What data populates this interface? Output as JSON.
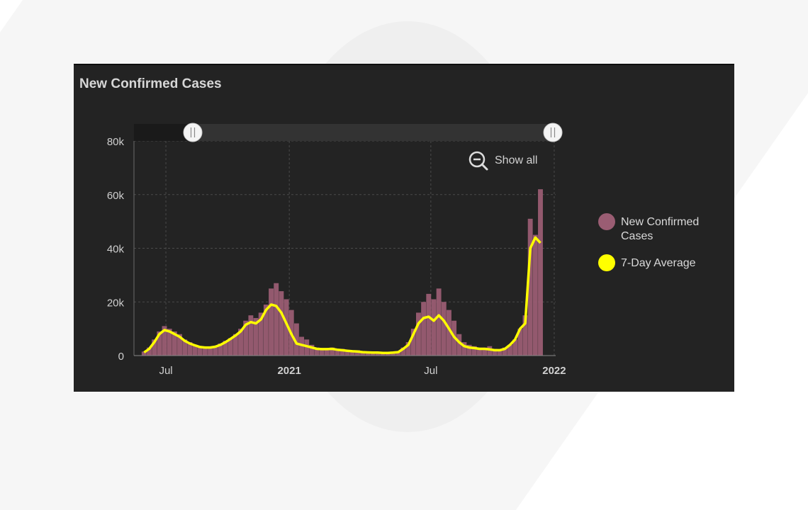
{
  "title": "New Confirmed Cases",
  "show_all_label": "Show all",
  "legend": [
    {
      "label": "New Confirmed Cases",
      "color": "#9a5d73"
    },
    {
      "label": "7-Day Average",
      "color": "#ffff00"
    }
  ],
  "chart_data": {
    "type": "bar",
    "title": "New Confirmed Cases",
    "xlabel": "",
    "ylabel": "",
    "ylim": [
      0,
      80000
    ],
    "y_ticks": [
      "0",
      "20k",
      "40k",
      "60k",
      "80k"
    ],
    "x_ticks": [
      "Jul",
      "2021",
      "Jul",
      "2022"
    ],
    "grid": true,
    "legend_position": "right",
    "series": [
      {
        "name": "New Confirmed Cases",
        "type": "bar",
        "color": "#9a5d73",
        "note": "daily values, approx",
        "x": [
          "2020-06-15",
          "2020-06-22",
          "2020-06-29",
          "2020-07-06",
          "2020-07-13",
          "2020-07-20",
          "2020-07-27",
          "2020-08-03",
          "2020-08-10",
          "2020-08-17",
          "2020-08-24",
          "2020-08-31",
          "2020-09-07",
          "2020-09-14",
          "2020-09-21",
          "2020-09-28",
          "2020-10-05",
          "2020-10-12",
          "2020-10-19",
          "2020-10-26",
          "2020-11-02",
          "2020-11-09",
          "2020-11-16",
          "2020-11-23",
          "2020-11-30",
          "2020-12-07",
          "2020-12-14",
          "2020-12-21",
          "2020-12-28",
          "2021-01-04",
          "2021-01-11",
          "2021-01-18",
          "2021-01-25",
          "2021-02-01",
          "2021-02-08",
          "2021-02-15",
          "2021-02-22",
          "2021-03-01",
          "2021-03-08",
          "2021-03-15",
          "2021-03-22",
          "2021-03-29",
          "2021-04-05",
          "2021-04-12",
          "2021-04-19",
          "2021-04-26",
          "2021-05-03",
          "2021-05-10",
          "2021-05-17",
          "2021-05-24",
          "2021-05-31",
          "2021-06-07",
          "2021-06-14",
          "2021-06-21",
          "2021-06-28",
          "2021-07-05",
          "2021-07-12",
          "2021-07-19",
          "2021-07-26",
          "2021-08-02",
          "2021-08-09",
          "2021-08-16",
          "2021-08-23",
          "2021-08-30",
          "2021-09-06",
          "2021-09-13",
          "2021-09-20",
          "2021-09-27",
          "2021-10-04",
          "2021-10-11",
          "2021-10-18",
          "2021-10-25",
          "2021-11-01",
          "2021-11-08",
          "2021-11-15",
          "2021-11-22",
          "2021-11-29",
          "2021-12-06",
          "2021-12-13",
          "2021-12-20",
          "2021-12-27",
          "2022-01-03"
        ],
        "values": [
          1500,
          3000,
          6000,
          9000,
          11000,
          10000,
          9000,
          8000,
          6000,
          5000,
          4000,
          3500,
          3000,
          3000,
          3500,
          4500,
          5500,
          6500,
          8000,
          10000,
          13000,
          15000,
          14000,
          16000,
          19000,
          25000,
          27000,
          24000,
          21000,
          17000,
          12000,
          7000,
          6000,
          4000,
          3000,
          2500,
          2500,
          3000,
          2500,
          2500,
          2000,
          2000,
          2000,
          1500,
          1500,
          1500,
          1200,
          1200,
          1200,
          1200,
          1500,
          3000,
          5000,
          10000,
          16000,
          20000,
          23000,
          21000,
          25000,
          20000,
          17000,
          13000,
          8000,
          5000,
          4000,
          3500,
          3000,
          3000,
          3500,
          2500,
          2000,
          3000,
          4000,
          6000,
          10000,
          15000,
          51000,
          45000,
          62000,
          0,
          0,
          0
        ]
      },
      {
        "name": "7-Day Average",
        "type": "line",
        "color": "#ffff00",
        "x": [
          "2020-06-15",
          "2020-06-22",
          "2020-06-29",
          "2020-07-06",
          "2020-07-13",
          "2020-07-20",
          "2020-07-27",
          "2020-08-03",
          "2020-08-10",
          "2020-08-17",
          "2020-08-24",
          "2020-08-31",
          "2020-09-07",
          "2020-09-14",
          "2020-09-21",
          "2020-09-28",
          "2020-10-05",
          "2020-10-12",
          "2020-10-19",
          "2020-10-26",
          "2020-11-02",
          "2020-11-09",
          "2020-11-16",
          "2020-11-23",
          "2020-11-30",
          "2020-12-07",
          "2020-12-14",
          "2020-12-21",
          "2020-12-28",
          "2021-01-04",
          "2021-01-11",
          "2021-01-18",
          "2021-01-25",
          "2021-02-01",
          "2021-02-08",
          "2021-02-15",
          "2021-02-22",
          "2021-03-01",
          "2021-03-08",
          "2021-03-15",
          "2021-03-22",
          "2021-03-29",
          "2021-04-05",
          "2021-04-12",
          "2021-04-19",
          "2021-04-26",
          "2021-05-03",
          "2021-05-10",
          "2021-05-17",
          "2021-05-24",
          "2021-05-31",
          "2021-06-07",
          "2021-06-14",
          "2021-06-21",
          "2021-06-28",
          "2021-07-05",
          "2021-07-12",
          "2021-07-19",
          "2021-07-26",
          "2021-08-02",
          "2021-08-09",
          "2021-08-16",
          "2021-08-23",
          "2021-08-30",
          "2021-09-06",
          "2021-09-13",
          "2021-09-20",
          "2021-09-27",
          "2021-10-04",
          "2021-10-11",
          "2021-10-18",
          "2021-10-25",
          "2021-11-01",
          "2021-11-08",
          "2021-11-15",
          "2021-11-22",
          "2021-11-29",
          "2021-12-06",
          "2021-12-13",
          "2021-12-20",
          "2021-12-27",
          "2022-01-03"
        ],
        "values": [
          1200,
          2500,
          5000,
          8000,
          9500,
          9000,
          8000,
          7000,
          5500,
          4500,
          3800,
          3200,
          3000,
          3000,
          3300,
          4000,
          5000,
          6200,
          7500,
          9000,
          11500,
          12500,
          12000,
          13500,
          17000,
          19000,
          18500,
          16000,
          12000,
          8000,
          4500,
          4000,
          3500,
          3000,
          2500,
          2400,
          2400,
          2500,
          2200,
          2000,
          1800,
          1600,
          1500,
          1300,
          1200,
          1100,
          1100,
          1000,
          1000,
          1100,
          1300,
          2500,
          4000,
          8000,
          12000,
          14000,
          14500,
          13000,
          15000,
          13000,
          10000,
          7000,
          5000,
          3500,
          3000,
          2800,
          2500,
          2500,
          2300,
          2000,
          2000,
          2500,
          4000,
          6000,
          10000,
          12000,
          40000,
          44000,
          42000,
          null,
          null,
          null
        ]
      }
    ],
    "visible_range": {
      "start": "2020-06-01",
      "end": "2022-01-03"
    }
  }
}
